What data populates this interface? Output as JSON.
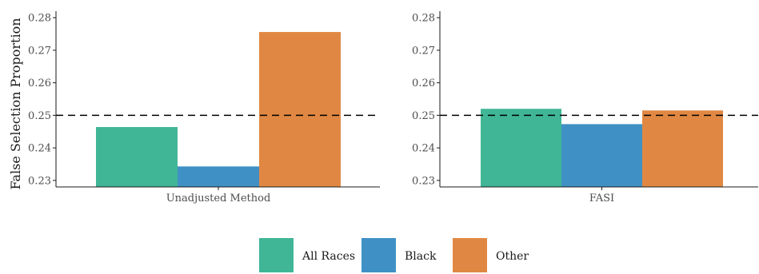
{
  "chart_data": {
    "type": "bar",
    "ylabel": "False Selection Proportion",
    "ylim": [
      0.228,
      0.282
    ],
    "yticks": [
      "0.23",
      "0.24",
      "0.25",
      "0.26",
      "0.27",
      "0.28"
    ],
    "reference_line": 0.25,
    "grid": false,
    "legend_position": "bottom",
    "legend": [
      "All Races",
      "Black",
      "Other"
    ],
    "colors": {
      "All Races": "#40b696",
      "Black": "#3f91c5",
      "Other": "#e08843"
    },
    "panels": [
      {
        "category": "Unadjusted Method",
        "series": [
          {
            "name": "All Races",
            "value": 0.2464
          },
          {
            "name": "Black",
            "value": 0.2343
          },
          {
            "name": "Other",
            "value": 0.2756
          }
        ]
      },
      {
        "category": "FASI",
        "series": [
          {
            "name": "All Races",
            "value": 0.252
          },
          {
            "name": "Black",
            "value": 0.2473
          },
          {
            "name": "Other",
            "value": 0.2515
          }
        ]
      }
    ]
  }
}
